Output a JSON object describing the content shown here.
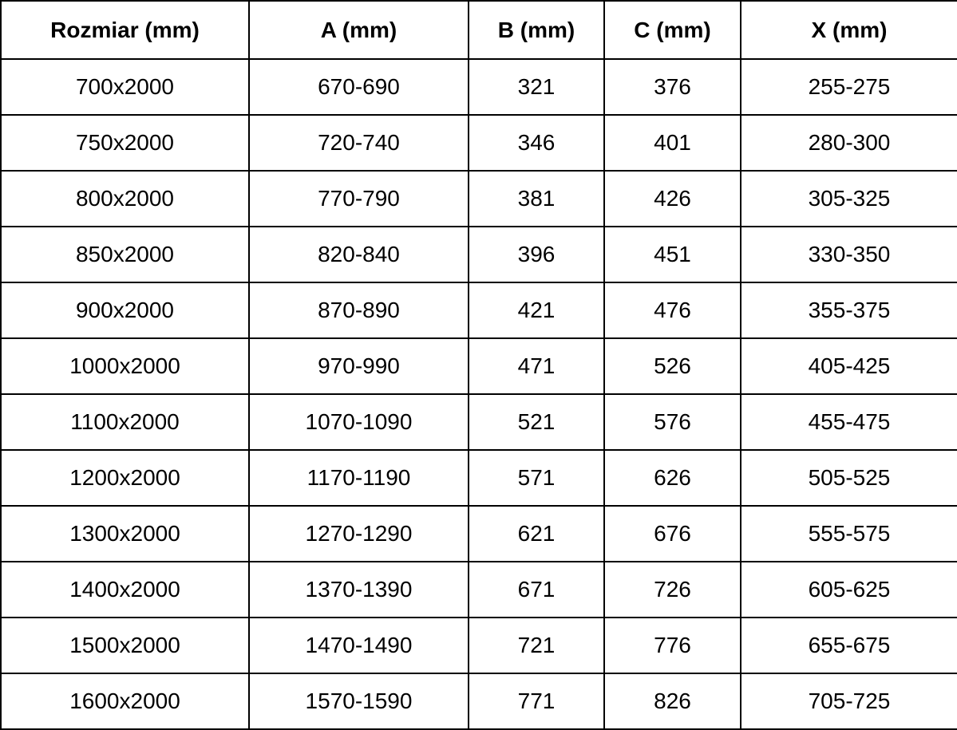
{
  "colors": {
    "border": "#000000",
    "text": "#000000",
    "background": "#ffffff"
  },
  "table": {
    "headers": [
      "Rozmiar (mm)",
      "A (mm)",
      "B (mm)",
      "C (mm)",
      "X (mm)"
    ],
    "rows": [
      [
        "700x2000",
        "670-690",
        "321",
        "376",
        "255-275"
      ],
      [
        "750x2000",
        "720-740",
        "346",
        "401",
        "280-300"
      ],
      [
        "800x2000",
        "770-790",
        "381",
        "426",
        "305-325"
      ],
      [
        "850x2000",
        "820-840",
        "396",
        "451",
        "330-350"
      ],
      [
        "900x2000",
        "870-890",
        "421",
        "476",
        "355-375"
      ],
      [
        "1000x2000",
        "970-990",
        "471",
        "526",
        "405-425"
      ],
      [
        "1100x2000",
        "1070-1090",
        "521",
        "576",
        "455-475"
      ],
      [
        "1200x2000",
        "1170-1190",
        "571",
        "626",
        "505-525"
      ],
      [
        "1300x2000",
        "1270-1290",
        "621",
        "676",
        "555-575"
      ],
      [
        "1400x2000",
        "1370-1390",
        "671",
        "726",
        "605-625"
      ],
      [
        "1500x2000",
        "1470-1490",
        "721",
        "776",
        "655-675"
      ],
      [
        "1600x2000",
        "1570-1590",
        "771",
        "826",
        "705-725"
      ]
    ]
  }
}
